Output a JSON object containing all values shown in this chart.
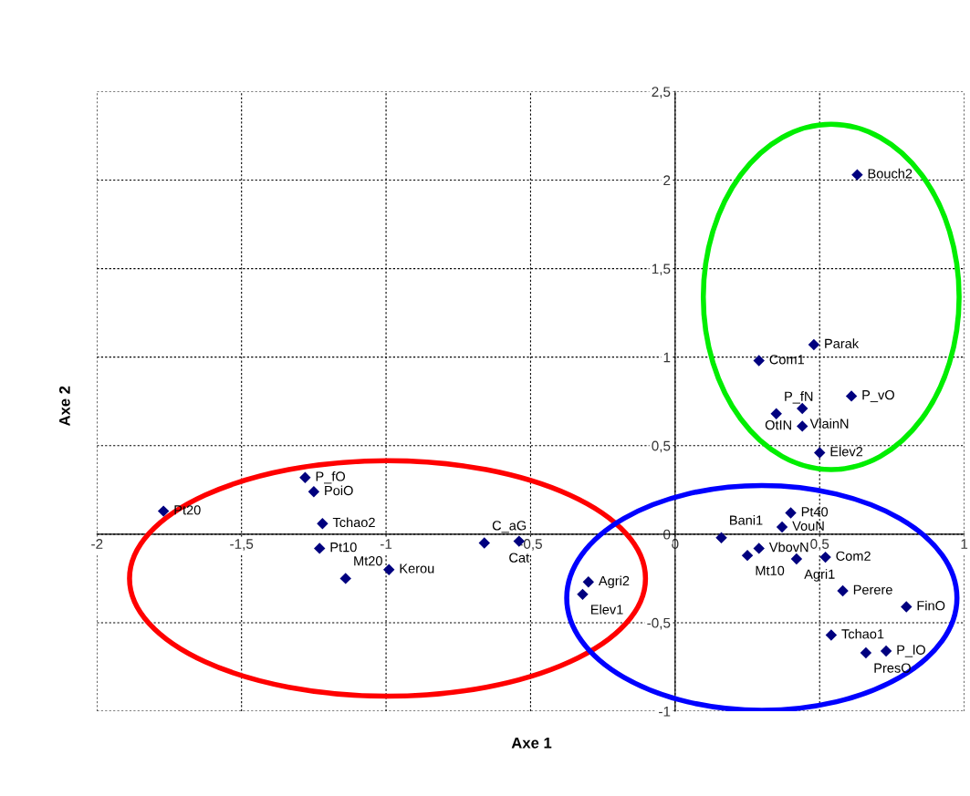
{
  "chart_data": {
    "type": "scatter",
    "xlabel": "Axe 1",
    "ylabel": "Axe 2",
    "x": [
      -1.77,
      -1.28,
      -1.25,
      -1.22,
      -1.23,
      -1.14,
      -0.99,
      -0.66,
      -0.54,
      -0.3,
      -0.32,
      0.16,
      0.25,
      0.29,
      0.37,
      0.4,
      0.42,
      0.52,
      0.58,
      0.8,
      0.54,
      0.66,
      0.73,
      0.48,
      0.29,
      0.61,
      0.35,
      0.44,
      0.44,
      0.5,
      0.63
    ],
    "values": [
      0.13,
      0.32,
      0.24,
      0.06,
      -0.08,
      -0.25,
      -0.2,
      -0.05,
      -0.04,
      -0.27,
      -0.34,
      -0.02,
      -0.12,
      -0.08,
      0.04,
      0.12,
      -0.14,
      -0.13,
      -0.32,
      -0.41,
      -0.57,
      -0.67,
      -0.66,
      1.07,
      0.98,
      0.78,
      0.68,
      0.71,
      0.61,
      0.46,
      2.03
    ],
    "value_labels": [
      "Pt20",
      "P_fO",
      "PoiO",
      "Tchao2",
      "Pt10",
      "Mt20",
      "Kerou",
      "C_aG",
      "Cat",
      "Agri2",
      "Elev1",
      "Bani1",
      "Mt10",
      "VbovN",
      "VouN",
      "Pt40",
      "Agri1",
      "Com2",
      "Perere",
      "FinO",
      "Tchao1",
      "PresO",
      "P_lO",
      "Parak",
      "Com1",
      "P_vO",
      "P_fN",
      "VlainN",
      "OtIN",
      "Elev2",
      "Bouch2"
    ],
    "color": "#00007f",
    "marker": "diamond",
    "xlim": [
      -2,
      1
    ],
    "ylim": [
      -1,
      2.5
    ],
    "xticks": [
      -2,
      {
        "value": -1.5,
        "label": "-1,5"
      },
      -1,
      {
        "value": -0.5,
        "label": "-0,5"
      },
      0,
      {
        "value": 0.5,
        "label": "0,5"
      },
      1
    ],
    "yticks": [
      -1,
      {
        "value": -0.5,
        "label": "-0,5"
      },
      0,
      {
        "value": 0.5,
        "label": "0,5"
      },
      1,
      {
        "value": 1.5,
        "label": "1,5"
      },
      2,
      {
        "value": 2.5,
        "label": "2,5"
      }
    ],
    "grid": true,
    "legend": false
  }
}
